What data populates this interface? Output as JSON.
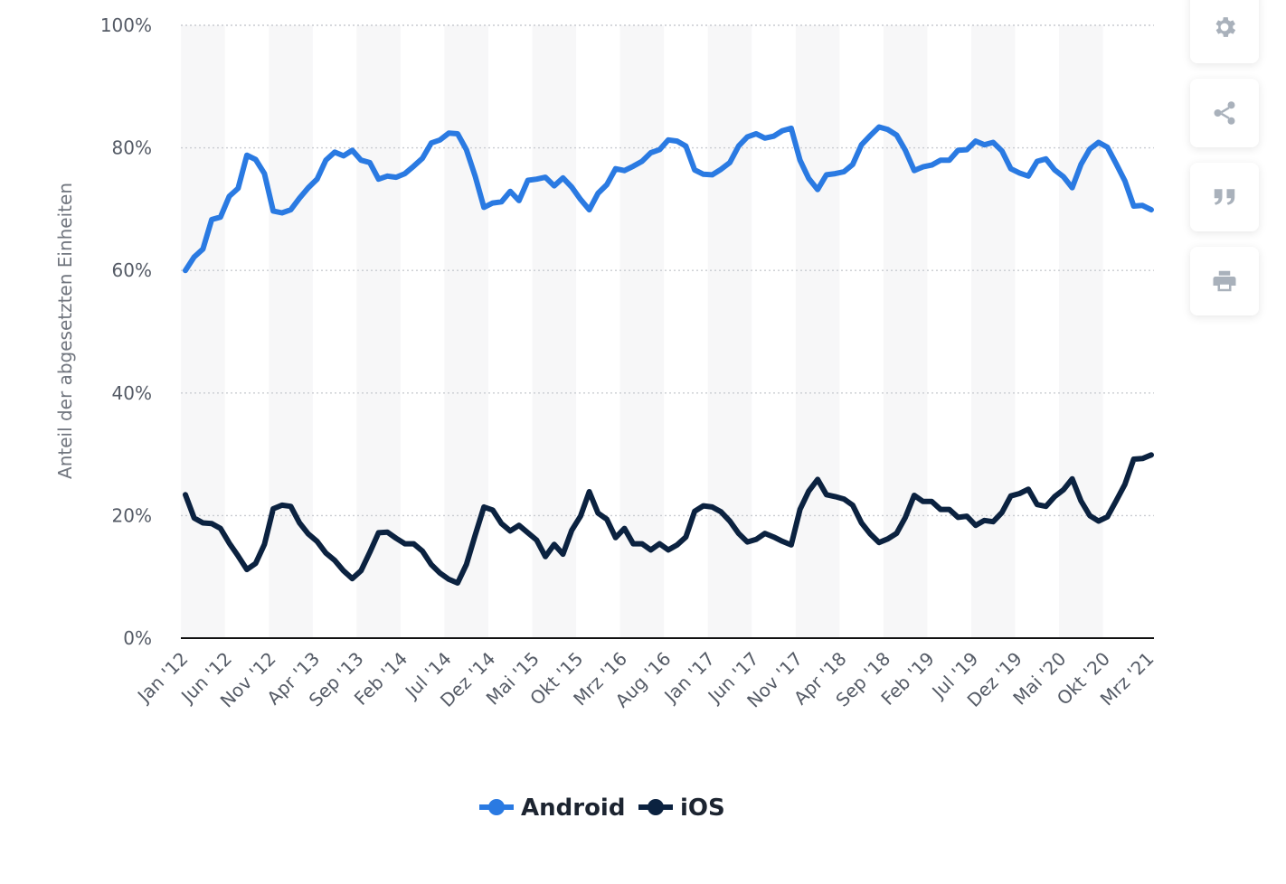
{
  "chart_data": {
    "type": "line",
    "title": "",
    "xlabel": "",
    "ylabel": "Anteil der abgesetzten Einheiten",
    "ylim": [
      0,
      100
    ],
    "yticks": [
      "0%",
      "20%",
      "40%",
      "60%",
      "80%",
      "100%"
    ],
    "xticks": [
      "Jan '12",
      "Jun '12",
      "Nov '12",
      "Apr '13",
      "Sep '13",
      "Feb '14",
      "Jul '14",
      "Dez '14",
      "Mai '15",
      "Okt '15",
      "Mrz '16",
      "Aug '16",
      "Jan '17",
      "Jun '17",
      "Nov '17",
      "Apr '18",
      "Sep '18",
      "Feb '19",
      "Jul '19",
      "Dez '19",
      "Mai '20",
      "Okt '20",
      "Mrz '21"
    ],
    "series": [
      {
        "name": "Android",
        "color": "#2a7ae2",
        "values": [
          60,
          62.2,
          63.5,
          68.3,
          68.7,
          72.1,
          73.4,
          78.8,
          78.1,
          75.8,
          69.7,
          69.4,
          69.9,
          71.8,
          73.5,
          74.9,
          78,
          79.3,
          78.7,
          79.6,
          78,
          77.6,
          74.9,
          75.4,
          75.2,
          75.8,
          77,
          78.3,
          80.8,
          81.3,
          82.4,
          82.3,
          79.7,
          75.4,
          70.3,
          71,
          71.2,
          72.9,
          71.4,
          74.7,
          74.9,
          75.2,
          73.8,
          75.1,
          73.6,
          71.6,
          69.9,
          72.6,
          74,
          76.6,
          76.3,
          77,
          77.8,
          79.2,
          79.7,
          81.3,
          81.1,
          80.3,
          76.4,
          75.7,
          75.6,
          76.5,
          77.6,
          80.3,
          81.8,
          82.3,
          81.6,
          81.9,
          82.8,
          83.2,
          78,
          75,
          73.2,
          75.6,
          75.8,
          76.1,
          77.3,
          80.5,
          82,
          83.4,
          83,
          82.1,
          79.6,
          76.3,
          76.9,
          77.2,
          78,
          78,
          79.6,
          79.7,
          81.1,
          80.5,
          80.9,
          79.5,
          76.6,
          75.9,
          75.4,
          77.8,
          78.2,
          76.4,
          75.3,
          73.5,
          77.3,
          79.8,
          80.9,
          80.1,
          77.4,
          74.6,
          70.5,
          70.6,
          69.9
        ]
      },
      {
        "name": "iOS",
        "color": "#0b2240",
        "values": [
          23.4,
          19.6,
          18.8,
          18.7,
          17.9,
          15.5,
          13.4,
          11.2,
          12.2,
          15.3,
          21.1,
          21.7,
          21.5,
          18.8,
          17,
          15.8,
          13.9,
          12.7,
          11,
          9.7,
          11,
          14,
          17.2,
          17.3,
          16.3,
          15.4,
          15.4,
          14.2,
          12,
          10.6,
          9.6,
          9,
          12,
          16.8,
          21.4,
          20.9,
          18.7,
          17.5,
          18.4,
          17.2,
          16,
          13.3,
          15.3,
          13.7,
          17.6,
          19.9,
          23.9,
          20.4,
          19.4,
          16.4,
          17.9,
          15.4,
          15.4,
          14.4,
          15.4,
          14.4,
          15.2,
          16.5,
          20.7,
          21.6,
          21.4,
          20.6,
          19.1,
          17.1,
          15.7,
          16.1,
          17.1,
          16.5,
          15.8,
          15.2,
          21,
          24,
          25.9,
          23.4,
          23.1,
          22.7,
          21.7,
          18.8,
          17,
          15.6,
          16.2,
          17.1,
          19.7,
          23.3,
          22.3,
          22.3,
          21,
          21,
          19.7,
          19.9,
          18.4,
          19.2,
          19,
          20.5,
          23.2,
          23.6,
          24.3,
          21.8,
          21.5,
          23.1,
          24.2,
          26,
          22.4,
          20,
          19.1,
          19.8,
          22.4,
          25.1,
          29.2,
          29.3,
          29.9
        ]
      }
    ],
    "legend": "bottom-center",
    "grid": true
  },
  "toolbar": {
    "buttons": [
      {
        "name": "settings-button",
        "icon": "gear-icon"
      },
      {
        "name": "share-button",
        "icon": "share-icon"
      },
      {
        "name": "cite-button",
        "icon": "quote-icon"
      },
      {
        "name": "print-button",
        "icon": "print-icon"
      }
    ]
  }
}
